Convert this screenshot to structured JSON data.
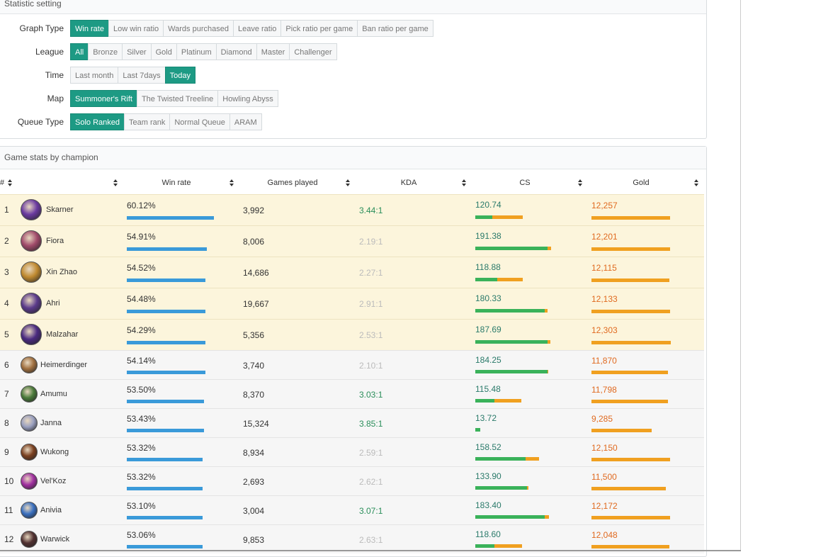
{
  "settings": {
    "title": "Statistic setting",
    "rows": [
      {
        "label": "Graph Type",
        "options": [
          "Win rate",
          "Low win ratio",
          "Wards purchased",
          "Leave ratio",
          "Pick ratio per game",
          "Ban ratio per game"
        ],
        "active": 0
      },
      {
        "label": "League",
        "options": [
          "All",
          "Bronze",
          "Silver",
          "Gold",
          "Platinum",
          "Diamond",
          "Master",
          "Challenger"
        ],
        "active": 0
      },
      {
        "label": "Time",
        "options": [
          "Last month",
          "Last 7days",
          "Today"
        ],
        "active": 2
      },
      {
        "label": "Map",
        "options": [
          "Summoner's Rift",
          "The Twisted Treeline",
          "Howling Abyss"
        ],
        "active": 0
      },
      {
        "label": "Queue Type",
        "options": [
          "Solo Ranked",
          "Team rank",
          "Normal Queue",
          "ARAM"
        ],
        "active": 0
      }
    ]
  },
  "stats": {
    "title": "Game stats by champion",
    "columns": {
      "rank": "#",
      "win_rate": "Win rate",
      "games": "Games played",
      "kda": "KDA",
      "cs": "CS",
      "gold": "Gold"
    },
    "rows": [
      {
        "rank": "1",
        "name": "Skarner",
        "win_rate": "60.12%",
        "win_frac": 0.6,
        "games": "3,992",
        "kda": "3.44:1",
        "kda_good": true,
        "cs": "120.74",
        "cs_green": 0.24,
        "cs_total": 0.66,
        "gold": "12,257",
        "gold_frac": 0.99,
        "color": "#6a3aa0"
      },
      {
        "rank": "2",
        "name": "Fiora",
        "win_rate": "54.91%",
        "win_frac": 0.55,
        "games": "8,006",
        "kda": "2.19:1",
        "kda_good": false,
        "cs": "191.38",
        "cs_green": 1.0,
        "cs_total": 1.05,
        "gold": "12,201",
        "gold_frac": 0.99,
        "color": "#a04a6a"
      },
      {
        "rank": "3",
        "name": "Xin Zhao",
        "win_rate": "54.52%",
        "win_frac": 0.54,
        "games": "14,686",
        "kda": "2.27:1",
        "kda_good": false,
        "cs": "118.88",
        "cs_green": 0.3,
        "cs_total": 0.66,
        "gold": "12,115",
        "gold_frac": 0.98,
        "color": "#c08a30"
      },
      {
        "rank": "4",
        "name": "Ahri",
        "win_rate": "54.48%",
        "win_frac": 0.54,
        "games": "19,667",
        "kda": "2.91:1",
        "kda_good": false,
        "cs": "180.33",
        "cs_green": 0.96,
        "cs_total": 1.0,
        "gold": "12,133",
        "gold_frac": 0.99,
        "color": "#5a3a8a"
      },
      {
        "rank": "5",
        "name": "Malzahar",
        "win_rate": "54.29%",
        "win_frac": 0.54,
        "games": "5,356",
        "kda": "2.53:1",
        "kda_good": false,
        "cs": "187.69",
        "cs_green": 1.0,
        "cs_total": 1.04,
        "gold": "12,303",
        "gold_frac": 1.0,
        "color": "#4a2a80"
      },
      {
        "rank": "6",
        "name": "Heimerdinger",
        "win_rate": "54.14%",
        "win_frac": 0.54,
        "games": "3,740",
        "kda": "2.10:1",
        "kda_good": false,
        "cs": "184.25",
        "cs_green": 1.0,
        "cs_total": 1.01,
        "gold": "11,870",
        "gold_frac": 0.96,
        "color": "#a07040"
      },
      {
        "rank": "7",
        "name": "Amumu",
        "win_rate": "53.50%",
        "win_frac": 0.53,
        "games": "8,370",
        "kda": "3.03:1",
        "kda_good": true,
        "cs": "115.48",
        "cs_green": 0.26,
        "cs_total": 0.64,
        "gold": "11,798",
        "gold_frac": 0.96,
        "color": "#4a7a3a"
      },
      {
        "rank": "8",
        "name": "Janna",
        "win_rate": "53.43%",
        "win_frac": 0.53,
        "games": "15,324",
        "kda": "3.85:1",
        "kda_good": true,
        "cs": "13.72",
        "cs_green": 0.07,
        "cs_total": 0.07,
        "gold": "9,285",
        "gold_frac": 0.76,
        "color": "#9aa0c0"
      },
      {
        "rank": "9",
        "name": "Wukong",
        "win_rate": "53.32%",
        "win_frac": 0.52,
        "games": "8,934",
        "kda": "2.59:1",
        "kda_good": false,
        "cs": "158.52",
        "cs_green": 0.7,
        "cs_total": 0.88,
        "gold": "12,150",
        "gold_frac": 0.99,
        "color": "#7a4020"
      },
      {
        "rank": "10",
        "name": "Vel'Koz",
        "win_rate": "53.32%",
        "win_frac": 0.52,
        "games": "2,693",
        "kda": "2.62:1",
        "kda_good": false,
        "cs": "133.90",
        "cs_green": 0.72,
        "cs_total": 0.74,
        "gold": "11,500",
        "gold_frac": 0.94,
        "color": "#a030a0"
      },
      {
        "rank": "11",
        "name": "Anivia",
        "win_rate": "53.10%",
        "win_frac": 0.52,
        "games": "3,004",
        "kda": "3.07:1",
        "kda_good": true,
        "cs": "183.40",
        "cs_green": 0.96,
        "cs_total": 1.02,
        "gold": "12,172",
        "gold_frac": 0.99,
        "color": "#3a70c0"
      },
      {
        "rank": "12",
        "name": "Warwick",
        "win_rate": "53.06%",
        "win_frac": 0.52,
        "games": "9,853",
        "kda": "2.63:1",
        "kda_good": false,
        "cs": "118.60",
        "cs_green": 0.26,
        "cs_total": 0.65,
        "gold": "12,048",
        "gold_frac": 0.98,
        "color": "#503030"
      }
    ]
  },
  "colors": {
    "accent": "#1d9a84",
    "win_bar": "#3a9ad9",
    "cs_green": "#3ab25a",
    "gold": "#f0a020",
    "gold_text": "#e06a20"
  }
}
